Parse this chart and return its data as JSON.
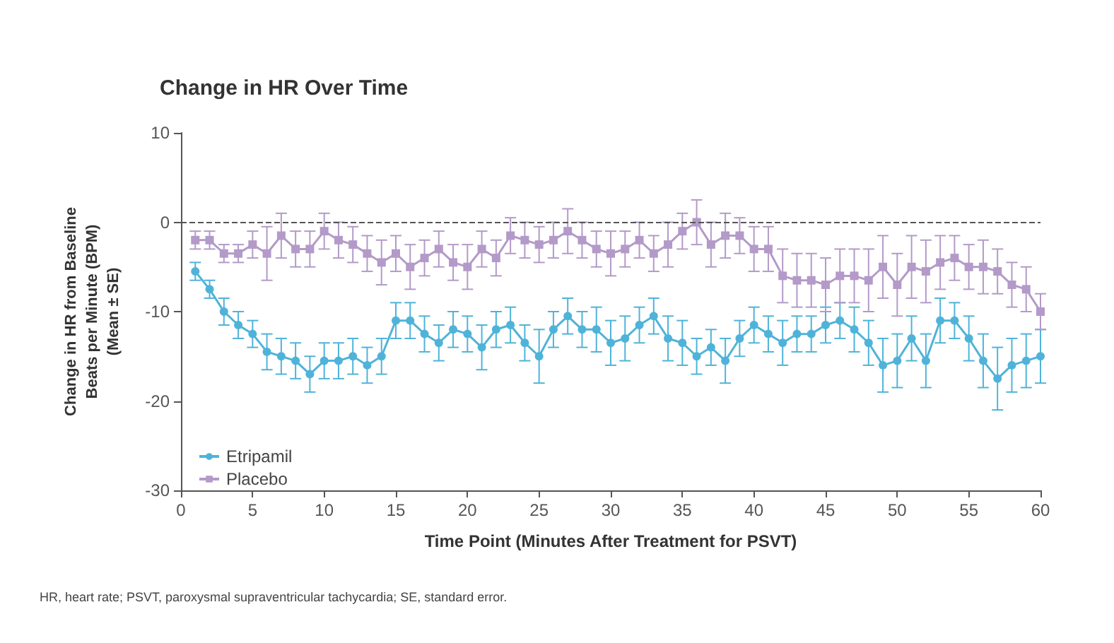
{
  "chart_data": {
    "type": "line",
    "title": "Change in HR Over Time",
    "xlabel": "Time Point (Minutes After Treatment for PSVT)",
    "ylabel": "Change in HR from Baseline\nBeats per Minute (BPM)\n(Mean ± SE)",
    "annotations": [
      "HR, heart rate; PSVT, paroxysmal supraventricular tachycardia; SE, standard error."
    ],
    "x": [
      1,
      2,
      3,
      4,
      5,
      6,
      7,
      8,
      9,
      10,
      11,
      12,
      13,
      14,
      15,
      16,
      17,
      18,
      19,
      20,
      21,
      22,
      23,
      24,
      25,
      26,
      27,
      28,
      29,
      30,
      31,
      32,
      33,
      34,
      35,
      36,
      37,
      38,
      39,
      40,
      41,
      42,
      43,
      44,
      45,
      46,
      47,
      48,
      49,
      50,
      51,
      52,
      53,
      54,
      55,
      56,
      57,
      58,
      59,
      60
    ],
    "series": [
      {
        "name": "Etripamil",
        "color": "#4fb3d9",
        "marker": "circle",
        "values": [
          -5.5,
          -7.5,
          -10,
          -11.5,
          -12.5,
          -14.5,
          -15,
          -15.5,
          -17,
          -15.5,
          -15.5,
          -15,
          -16,
          -15,
          -11,
          -11,
          -12.5,
          -13.5,
          -12,
          -12.5,
          -14,
          -12,
          -11.5,
          -13.5,
          -15,
          -12,
          -10.5,
          -12,
          -12,
          -13.5,
          -13,
          -11.5,
          -10.5,
          -13,
          -13.5,
          -15,
          -14,
          -15.5,
          -13,
          -11.5,
          -12.5,
          -13.5,
          -12.5,
          -12.5,
          -11.5,
          -11,
          -12,
          -13.5,
          -16,
          -15.5,
          -13,
          -15.5,
          -11,
          -11,
          -13,
          -15.5,
          -17.5,
          -16,
          -15.5,
          -15
        ],
        "errors": [
          1,
          1,
          1.5,
          1.5,
          1.5,
          2,
          2,
          2,
          2,
          2,
          2,
          2,
          2,
          2,
          2,
          2,
          2,
          2,
          2,
          2,
          2.5,
          2,
          2,
          2,
          3,
          2,
          2,
          2,
          2.5,
          2.5,
          2.5,
          2,
          2,
          2.5,
          2.5,
          2,
          2,
          2.5,
          2,
          2,
          2,
          2.5,
          2,
          2,
          2,
          2,
          2.5,
          2.5,
          3,
          3,
          2.5,
          3,
          2.5,
          2,
          2.5,
          3,
          3.5,
          3,
          3,
          3
        ]
      },
      {
        "name": "Placebo",
        "color": "#b39ac8",
        "marker": "square",
        "values": [
          -2,
          -2,
          -3.5,
          -3.5,
          -2.5,
          -3.5,
          -1.5,
          -3,
          -3,
          -1,
          -2,
          -2.5,
          -3.5,
          -4.5,
          -3.5,
          -5,
          -4,
          -3,
          -4.5,
          -5,
          -3,
          -4,
          -1.5,
          -2,
          -2.5,
          -2,
          -1,
          -2,
          -3,
          -3.5,
          -3,
          -2,
          -3.5,
          -2.5,
          -1,
          0,
          -2.5,
          -1.5,
          -1.5,
          -3,
          -3,
          -6,
          -6.5,
          -6.5,
          -7,
          -6,
          -6,
          -6.5,
          -5,
          -7,
          -5,
          -5.5,
          -4.5,
          -4,
          -5,
          -5,
          -5.5,
          -7,
          -7.5,
          -10
        ],
        "errors": [
          1,
          1,
          1,
          1,
          1.5,
          3,
          2.5,
          2,
          2,
          2,
          2,
          2,
          2,
          2.5,
          2,
          2.5,
          2,
          2,
          2,
          2.5,
          2,
          2,
          2,
          2,
          2,
          2,
          2.5,
          2,
          2,
          2.5,
          2,
          2,
          2,
          2.5,
          2,
          2.5,
          2.5,
          2.5,
          2,
          2.5,
          2.5,
          3,
          3,
          3,
          3,
          3,
          3,
          3.5,
          3.5,
          3.5,
          3.5,
          3.5,
          3,
          2.5,
          2.5,
          3,
          2.5,
          2.5,
          2.5,
          2
        ]
      }
    ],
    "xlim": [
      0,
      60
    ],
    "xticks": [
      0,
      5,
      10,
      15,
      20,
      25,
      30,
      35,
      40,
      45,
      50,
      55,
      60
    ],
    "ylim": [
      -30,
      10
    ],
    "yticks": [
      -30,
      -20,
      -10,
      0,
      10
    ],
    "ref_lines": [
      {
        "axis": "y",
        "value": 0,
        "color": "#555555",
        "line_style": "dashed"
      }
    ],
    "legend": "bottom left",
    "grid": false
  }
}
